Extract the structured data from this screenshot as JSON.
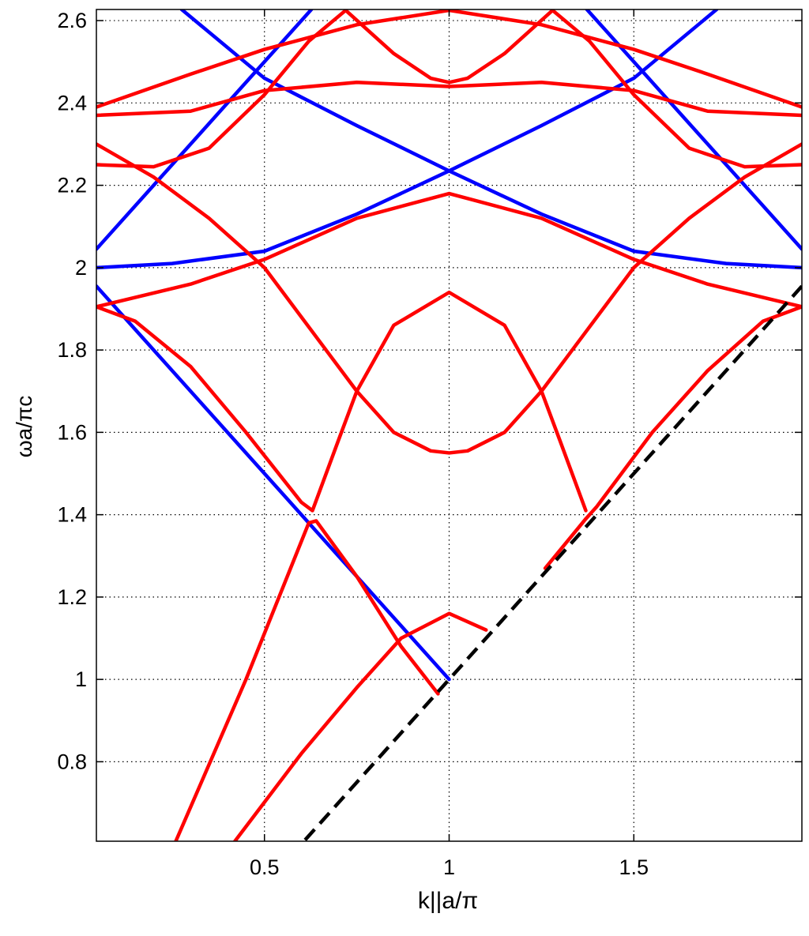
{
  "chart_data": {
    "type": "line",
    "x_label": "k||a/π",
    "y_label": "ωa/πc",
    "xlim": [
      0.045,
      1.955
    ],
    "ylim": [
      0.607,
      2.627
    ],
    "xticks": [
      0.5,
      1,
      1.5
    ],
    "yticks": [
      0.8,
      1,
      1.2,
      1.4,
      1.6,
      1.8,
      2,
      2.2,
      2.4,
      2.6
    ],
    "grid": true,
    "series": [
      {
        "color": "#0000ff",
        "x": [
          0.045,
          1
        ],
        "values": [
          1.955,
          1.0
        ]
      },
      {
        "color": "#0000ff",
        "x": [
          0.045,
          0.627
        ],
        "values": [
          2.045,
          2.627
        ]
      },
      {
        "color": "#0000ff",
        "x": [
          1.373,
          1.955
        ],
        "values": [
          2.627,
          2.045
        ]
      },
      {
        "color": "#0000ff",
        "x": [
          0.045,
          0.25,
          0.5,
          0.75,
          1,
          1.25,
          1.5,
          1.724
        ],
        "values": [
          2.0,
          2.01,
          2.04,
          2.13,
          2.235,
          2.345,
          2.46,
          2.627
        ]
      },
      {
        "color": "#0000ff",
        "x": [
          0.276,
          0.5,
          0.75,
          1,
          1.25,
          1.5,
          1.75,
          1.955
        ],
        "values": [
          2.627,
          2.46,
          2.345,
          2.235,
          2.13,
          2.04,
          2.01,
          2.0
        ]
      },
      {
        "color": "#ff0000",
        "x": [
          0.045,
          0.3,
          0.5,
          0.75,
          1,
          1.25,
          1.5,
          1.7,
          1.955
        ],
        "values": [
          2.39,
          2.47,
          2.53,
          2.59,
          2.625,
          2.59,
          2.53,
          2.47,
          2.39
        ]
      },
      {
        "color": "#ff0000",
        "x": [
          0.045,
          0.3,
          0.5,
          0.75,
          1,
          1.25,
          1.5,
          1.7,
          1.955
        ],
        "values": [
          2.37,
          2.38,
          2.43,
          2.45,
          2.44,
          2.45,
          2.43,
          2.38,
          2.37
        ]
      },
      {
        "color": "#ff0000",
        "x": [
          0.045,
          0.2,
          0.35,
          0.5,
          0.62,
          0.72,
          0.85,
          0.95,
          1,
          1.05,
          1.15,
          1.28,
          1.38,
          1.5,
          1.65,
          1.8,
          1.955
        ],
        "values": [
          2.25,
          2.245,
          2.29,
          2.42,
          2.55,
          2.625,
          2.52,
          2.46,
          2.45,
          2.46,
          2.52,
          2.625,
          2.55,
          2.42,
          2.29,
          2.245,
          2.25
        ]
      },
      {
        "color": "#ff0000",
        "x": [
          0.045,
          0.2,
          0.35,
          0.5,
          0.65,
          0.75,
          0.85,
          0.95,
          1,
          1.05,
          1.15,
          1.25,
          1.35,
          1.5,
          1.65,
          1.8,
          1.955
        ],
        "values": [
          2.3,
          2.22,
          2.12,
          2.0,
          1.82,
          1.7,
          1.6,
          1.555,
          1.55,
          1.555,
          1.6,
          1.7,
          1.82,
          2.0,
          2.12,
          2.22,
          2.3
        ]
      },
      {
        "color": "#ff0000",
        "x": [
          0.045,
          0.15,
          0.3,
          0.45,
          0.6,
          0.63,
          0.7,
          0.75,
          0.85,
          1,
          1.15,
          1.25,
          1.3,
          1.37
        ],
        "values": [
          1.905,
          1.87,
          1.76,
          1.6,
          1.43,
          1.41,
          1.58,
          1.7,
          1.86,
          1.94,
          1.86,
          1.7,
          1.58,
          1.41
        ]
      },
      {
        "color": "#ff0000",
        "x": [
          1.37,
          1.4,
          1.55,
          1.7,
          1.85,
          1.955
        ],
        "values": [
          1.39,
          1.42,
          1.6,
          1.75,
          1.87,
          1.905
        ]
      },
      {
        "color": "#ff0000",
        "x": [
          0.045,
          0.3,
          0.5,
          0.75,
          1,
          1.25,
          1.5,
          1.7,
          1.955
        ],
        "values": [
          1.905,
          1.96,
          2.02,
          2.12,
          2.18,
          2.12,
          2.02,
          1.96,
          1.905
        ]
      },
      {
        "color": "#ff0000",
        "x": [
          0.26,
          0.45,
          0.62,
          0.64,
          0.75,
          0.87,
          0.97
        ],
        "values": [
          0.607,
          1.0,
          1.38,
          1.385,
          1.25,
          1.08,
          0.965
        ]
      },
      {
        "color": "#ff0000",
        "x": [
          0.42,
          0.6,
          0.75,
          0.87,
          1,
          1.1
        ],
        "values": [
          0.607,
          0.82,
          0.98,
          1.1,
          1.16,
          1.12
        ]
      },
      {
        "color": "#ff0000",
        "x": [
          1.26,
          1.37
        ],
        "values": [
          1.27,
          1.39
        ]
      },
      {
        "color": "#000000",
        "dashed": true,
        "x": [
          0.61,
          1.955
        ],
        "values": [
          0.61,
          1.955
        ]
      }
    ]
  }
}
